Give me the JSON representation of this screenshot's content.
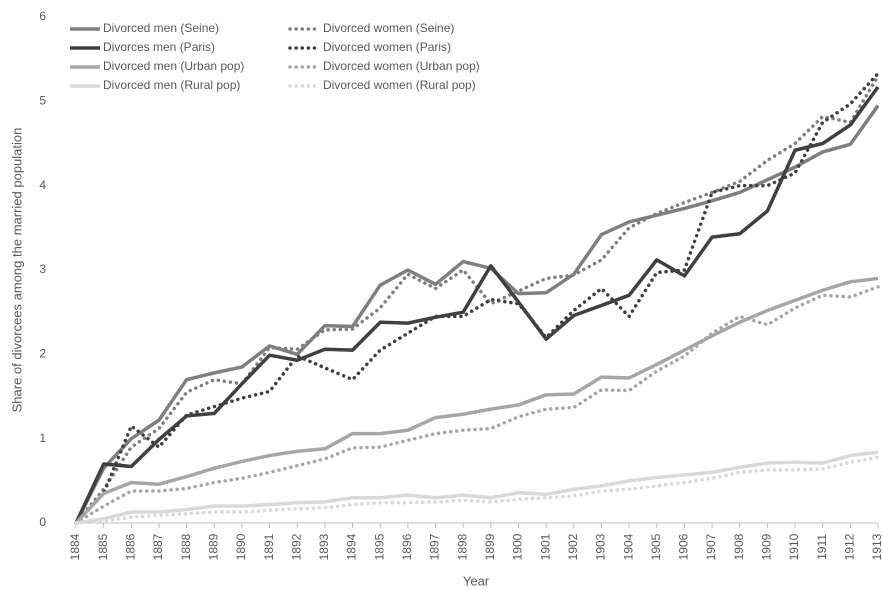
{
  "chart_data": {
    "type": "line",
    "x_label": "Year",
    "y_label": "Share of divorcees among the married population",
    "categories": [
      "1884",
      "1885",
      "1886",
      "1887",
      "1888",
      "1889",
      "1890",
      "1891",
      "1892",
      "1893",
      "1894",
      "1895",
      "1896",
      "1897",
      "1898",
      "1899",
      "1900",
      "1901",
      "1902",
      "1903",
      "1904",
      "1905",
      "1906",
      "1907",
      "1908",
      "1909",
      "1910",
      "1911",
      "1912",
      "1913"
    ],
    "ylim": [
      0,
      6
    ],
    "yticks": [
      0,
      1,
      2,
      3,
      4,
      5,
      6
    ],
    "grid": false,
    "legend": "top-left",
    "series": [
      {
        "name": "Divorced men (Seine)",
        "color": "#7f7f7f",
        "style": "solid",
        "values": [
          0,
          0.65,
          1.0,
          1.22,
          1.7,
          1.78,
          1.85,
          2.1,
          2.0,
          2.34,
          2.33,
          2.82,
          3.0,
          2.83,
          3.1,
          3.02,
          2.72,
          2.73,
          2.95,
          3.42,
          3.57,
          3.65,
          3.73,
          3.82,
          3.92,
          4.07,
          4.22,
          4.4,
          4.49,
          4.95
        ]
      },
      {
        "name": "Divorced women (Seine)",
        "color": "#7f7f7f",
        "style": "dotted",
        "values": [
          0,
          0.4,
          0.9,
          1.12,
          1.55,
          1.7,
          1.65,
          2.08,
          2.06,
          2.29,
          2.3,
          2.55,
          2.95,
          2.78,
          3.0,
          2.6,
          2.75,
          2.9,
          2.94,
          3.12,
          3.5,
          3.67,
          3.8,
          3.92,
          4.05,
          4.3,
          4.5,
          4.82,
          4.75,
          5.3
        ]
      },
      {
        "name": "Divorces men (Paris)",
        "color": "#404040",
        "style": "solid",
        "values": [
          0,
          0.7,
          0.67,
          0.99,
          1.27,
          1.3,
          1.65,
          1.99,
          1.93,
          2.06,
          2.05,
          2.38,
          2.37,
          2.44,
          2.5,
          3.05,
          2.62,
          2.18,
          2.46,
          2.58,
          2.7,
          3.12,
          2.93,
          3.39,
          3.43,
          3.7,
          4.42,
          4.5,
          4.72,
          5.17
        ]
      },
      {
        "name": "Divorced women (Paris)",
        "color": "#404040",
        "style": "dotted",
        "values": [
          0,
          0.35,
          1.15,
          0.9,
          1.28,
          1.38,
          1.48,
          1.56,
          1.98,
          1.84,
          1.7,
          2.05,
          2.25,
          2.45,
          2.45,
          2.65,
          2.6,
          2.2,
          2.52,
          2.78,
          2.45,
          2.97,
          3.0,
          3.92,
          4.0,
          4.0,
          4.15,
          4.75,
          4.97,
          5.33
        ]
      },
      {
        "name": "Divorced men (Urban pop)",
        "color": "#a6a6a6",
        "style": "solid",
        "values": [
          0,
          0.35,
          0.48,
          0.46,
          0.55,
          0.65,
          0.73,
          0.8,
          0.85,
          0.88,
          1.06,
          1.06,
          1.1,
          1.25,
          1.29,
          1.35,
          1.4,
          1.52,
          1.53,
          1.73,
          1.72,
          1.88,
          2.05,
          2.22,
          2.38,
          2.52,
          2.64,
          2.76,
          2.86,
          2.9
        ]
      },
      {
        "name": "Divorced women (Urban pop)",
        "color": "#a6a6a6",
        "style": "dotted",
        "values": [
          0,
          0.2,
          0.38,
          0.38,
          0.41,
          0.48,
          0.53,
          0.6,
          0.68,
          0.76,
          0.89,
          0.9,
          0.98,
          1.06,
          1.1,
          1.12,
          1.26,
          1.35,
          1.37,
          1.58,
          1.57,
          1.8,
          1.98,
          2.25,
          2.45,
          2.35,
          2.55,
          2.7,
          2.68,
          2.8
        ]
      },
      {
        "name": "Divorced men (Rural pop)",
        "color": "#d9d9d9",
        "style": "solid",
        "values": [
          0,
          0.05,
          0.13,
          0.13,
          0.16,
          0.2,
          0.2,
          0.22,
          0.24,
          0.25,
          0.3,
          0.3,
          0.33,
          0.3,
          0.33,
          0.3,
          0.36,
          0.34,
          0.4,
          0.44,
          0.5,
          0.54,
          0.57,
          0.6,
          0.66,
          0.71,
          0.72,
          0.71,
          0.8,
          0.84
        ]
      },
      {
        "name": "Divorced women (Rural pop)",
        "color": "#d9d9d9",
        "style": "dotted",
        "values": [
          0,
          0.02,
          0.07,
          0.09,
          0.11,
          0.13,
          0.13,
          0.15,
          0.17,
          0.18,
          0.22,
          0.24,
          0.24,
          0.25,
          0.27,
          0.25,
          0.28,
          0.3,
          0.32,
          0.38,
          0.4,
          0.44,
          0.48,
          0.53,
          0.6,
          0.63,
          0.63,
          0.64,
          0.72,
          0.78
        ]
      }
    ]
  }
}
